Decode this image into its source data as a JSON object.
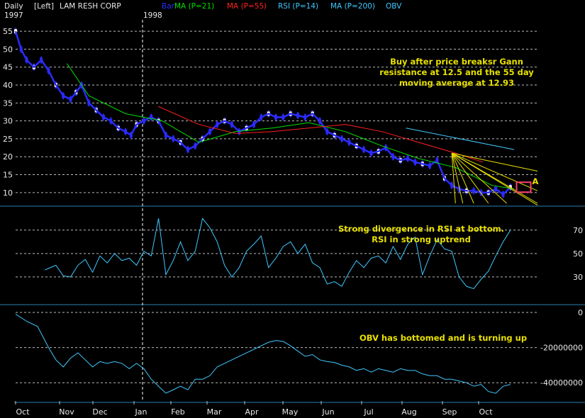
{
  "header": {
    "period": "Daily",
    "side": "[Left]",
    "security": "LAM RESH CORP",
    "start_year": "1997",
    "mid_year": "1998",
    "legend": [
      {
        "label": "Bar",
        "color": "#2b2bff"
      },
      {
        "label": "MA (P=21)",
        "color": "#00e000"
      },
      {
        "label": "MA (P=55)",
        "color": "#ff2020"
      },
      {
        "label": "RSI (P=14)",
        "color": "#40c8ff"
      },
      {
        "label": "MA (P=200)",
        "color": "#40c8ff"
      },
      {
        "label": "OBV",
        "color": "#40c8ff"
      }
    ]
  },
  "chart_data": [
    {
      "type": "line",
      "panel": "price",
      "y_ticks": [
        10,
        15,
        20,
        25,
        30,
        35,
        40,
        45,
        50,
        55
      ],
      "ylim": [
        7,
        57
      ],
      "x_months": [
        "Oct",
        "Nov",
        "Dec",
        "Jan",
        "Feb",
        "Mar",
        "Apr",
        "May",
        "Jun",
        "Jul",
        "Aug",
        "Sep",
        "Oct"
      ],
      "x_day_range": [
        0,
        272
      ],
      "series": [
        {
          "name": "Bar",
          "color": "#2b2bff",
          "kind": "ohlc",
          "x": [
            0,
            3,
            6,
            10,
            14,
            18,
            22,
            26,
            30,
            33,
            36,
            40,
            44,
            48,
            52,
            56,
            60,
            63,
            66,
            70,
            74,
            78,
            82,
            86,
            90,
            94,
            98,
            102,
            106,
            110,
            114,
            118,
            122,
            126,
            130,
            134,
            138,
            142,
            146,
            150,
            154,
            158,
            162,
            166,
            170,
            174,
            178,
            182,
            186,
            190,
            194,
            198,
            202,
            206,
            210,
            214,
            218,
            222,
            226,
            230,
            234,
            238,
            242,
            246,
            250,
            254,
            258,
            262,
            266,
            270
          ],
          "y": [
            55,
            50,
            47,
            45,
            47,
            44,
            40,
            37,
            36,
            38,
            40,
            35,
            33,
            31,
            30,
            28,
            27,
            26,
            29,
            30,
            31,
            30,
            26,
            25,
            24,
            22,
            23,
            25,
            27,
            29,
            30,
            29,
            27,
            28,
            29,
            31,
            32,
            31,
            31,
            32,
            31.5,
            31,
            32,
            30,
            27,
            26,
            25,
            24,
            23,
            22,
            21,
            21.5,
            22.5,
            20,
            19,
            19.5,
            18.5,
            18,
            17.5,
            19,
            14,
            12,
            11,
            10.5,
            10.5,
            10,
            10,
            11,
            9.5,
            11.5
          ]
        },
        {
          "name": "MA (P=21)",
          "color": "#00e000",
          "x": [
            28,
            40,
            60,
            80,
            100,
            120,
            140,
            160,
            180,
            200,
            220,
            240,
            260,
            272
          ],
          "y": [
            46,
            37,
            32,
            30,
            24,
            27,
            28,
            29.5,
            27,
            23,
            19.5,
            17,
            12,
            11
          ]
        },
        {
          "name": "MA (P=55)",
          "color": "#ff2020",
          "x": [
            78,
            100,
            120,
            140,
            160,
            180,
            200,
            220,
            240,
            255
          ],
          "y": [
            34,
            29,
            26.5,
            27,
            28,
            29,
            27,
            24,
            21,
            18.5
          ]
        },
        {
          "name": "MA (P=200)",
          "color": "#40c8ff",
          "x": [
            213,
            272
          ],
          "y": [
            28,
            22
          ]
        }
      ],
      "gann_fan": {
        "origin_x": 238,
        "origin_y": 21,
        "color": "#e8e000",
        "end_points": [
          [
            296,
            16
          ],
          [
            296,
            10.5
          ],
          [
            296,
            6.5
          ],
          [
            285,
            7
          ],
          [
            268,
            7
          ],
          [
            258,
            7
          ],
          [
            250,
            7
          ],
          [
            244,
            7
          ],
          [
            240,
            7
          ]
        ]
      },
      "marker": {
        "label": "A",
        "x": 278,
        "y": 11.5,
        "box_color": "#ff4070"
      },
      "annotation": [
        "Buy after price breaksr Gann",
        "resistance at 12.5 and the 55 day",
        "moving average at 12.93"
      ]
    },
    {
      "type": "line",
      "panel": "rsi",
      "y_ticks": [
        30,
        50,
        70
      ],
      "ylim": [
        10,
        85
      ],
      "series": [
        {
          "name": "RSI (P=14)",
          "color": "#40c8ff",
          "x": [
            16,
            22,
            26,
            30,
            34,
            38,
            42,
            46,
            50,
            54,
            58,
            62,
            66,
            70,
            74,
            78,
            82,
            86,
            90,
            94,
            98,
            102,
            106,
            110,
            114,
            118,
            122,
            126,
            130,
            134,
            138,
            142,
            146,
            150,
            154,
            158,
            162,
            166,
            170,
            174,
            178,
            182,
            186,
            190,
            194,
            198,
            202,
            206,
            210,
            214,
            218,
            222,
            226,
            230,
            234,
            238,
            242,
            246,
            250,
            254,
            258,
            262,
            266,
            270
          ],
          "y": [
            36,
            40,
            31,
            30,
            40,
            45,
            34,
            48,
            42,
            50,
            44,
            46,
            40,
            52,
            48,
            80,
            32,
            44,
            60,
            44,
            52,
            80,
            72,
            60,
            40,
            30,
            38,
            52,
            58,
            65,
            38,
            46,
            56,
            60,
            50,
            58,
            42,
            38,
            24,
            26,
            22,
            34,
            44,
            38,
            46,
            48,
            42,
            56,
            45,
            58,
            64,
            32,
            48,
            62,
            54,
            52,
            30,
            22,
            20,
            28,
            35,
            48,
            60,
            70
          ]
        }
      ],
      "annotation": [
        "Strong divergence in RSI at bottom.",
        "RSI in strong uptrend"
      ]
    },
    {
      "type": "line",
      "panel": "obv",
      "y_ticks": [
        0,
        -20000000,
        -40000000
      ],
      "y_tick_labels": [
        "0",
        "-20000000",
        "-40000000"
      ],
      "ylim": [
        -50000000,
        2000000
      ],
      "series": [
        {
          "name": "OBV",
          "color": "#40c8ff",
          "x": [
            0,
            6,
            12,
            18,
            22,
            26,
            30,
            34,
            38,
            42,
            46,
            50,
            54,
            58,
            62,
            66,
            70,
            74,
            78,
            82,
            86,
            90,
            94,
            98,
            102,
            106,
            110,
            114,
            118,
            122,
            126,
            130,
            134,
            138,
            142,
            146,
            150,
            154,
            158,
            162,
            166,
            170,
            174,
            178,
            182,
            186,
            190,
            194,
            198,
            202,
            206,
            210,
            214,
            218,
            222,
            226,
            230,
            234,
            238,
            242,
            246,
            250,
            254,
            258,
            262,
            266,
            270
          ],
          "y": [
            -1000000,
            -5000000,
            -8000000,
            -20000000,
            -27000000,
            -31000000,
            -26000000,
            -23000000,
            -27000000,
            -31000000,
            -28000000,
            -29000000,
            -28000000,
            -29000000,
            -32000000,
            -29000000,
            -32000000,
            -38000000,
            -42000000,
            -46000000,
            -44000000,
            -42000000,
            -44000000,
            -38000000,
            -38000000,
            -36000000,
            -31000000,
            -29000000,
            -27000000,
            -25000000,
            -23000000,
            -21000000,
            -19000000,
            -17000000,
            -16000000,
            -16500000,
            -19000000,
            -22000000,
            -25000000,
            -24000000,
            -27000000,
            -28000000,
            -28500000,
            -30000000,
            -31000000,
            -33000000,
            -32000000,
            -34000000,
            -32000000,
            -33000000,
            -34000000,
            -32000000,
            -33000000,
            -33000000,
            -35000000,
            -36000000,
            -36000000,
            -38000000,
            -38000000,
            -39000000,
            -40000000,
            -42000000,
            -41000000,
            -45000000,
            -46000000,
            -42000000,
            -41000000
          ]
        }
      ],
      "annotation": [
        "OBV has bottomed and is turning up"
      ]
    }
  ]
}
